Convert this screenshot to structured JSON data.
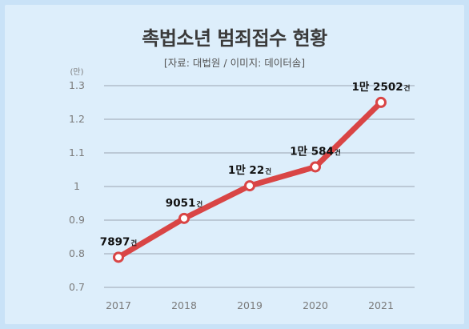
{
  "chart_data": {
    "type": "line",
    "title": "촉법소년 범죄접수 현황",
    "subtitle": "[자료: 대법원 / 이미지: 데이터솜]",
    "yunit": "(만)",
    "categories": [
      "2017",
      "2018",
      "2019",
      "2020",
      "2021"
    ],
    "series": [
      {
        "values": [
          0.7897,
          0.9051,
          1.0022,
          1.0584,
          1.2502
        ]
      }
    ],
    "data_labels": [
      {
        "main": "7897",
        "unit": "건"
      },
      {
        "main": "9051",
        "unit": "건"
      },
      {
        "main": "1만 22",
        "unit": "건"
      },
      {
        "main": "1만 584",
        "unit": "건"
      },
      {
        "main": "1만 2502",
        "unit": "건"
      }
    ],
    "yticks": [
      "0.7",
      "0.8",
      "0.9",
      "1",
      "1.1",
      "1.2",
      "1.3"
    ],
    "ylim": [
      0.7,
      1.3
    ],
    "grid": true,
    "colors": {
      "line": "#d94545",
      "marker_fill": "#ffffff",
      "grid": "#a8b3bf"
    }
  }
}
